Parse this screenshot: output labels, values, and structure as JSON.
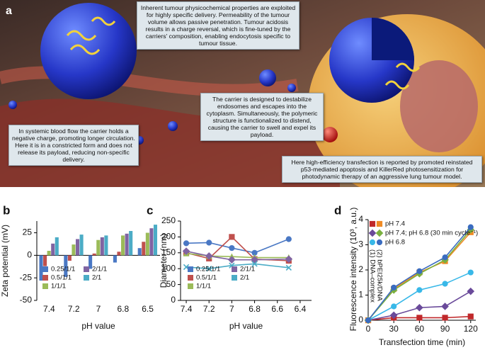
{
  "panel_a": {
    "label": "a",
    "callouts": [
      "Inherent tumour physicochemical properties are exploited for highly specific delivery. Permeability of the tumour volume allows passive penetration. Tumour acidosis results in a charge reversal, which is fine-tuned by the carriers' composition, enabling endocytosis specific to tumour tissue.",
      "The carrier is designed to destabilize endosomes and escapes into the cytoplasm. Simultaneously, the polymeric structure is functionalized to distend, causing the carrier to swell and expel its payload.",
      "In systemic blood flow the carrier holds a negative charge, promoting longer circulation. Here it is in a constricted form and does not release its payload, reducing non-specific delivery.",
      "Here high-efficiency transfection is reported by promoted reinstated p53-mediated apoptosis and KillerRed photosensitization for photodynamic therapy of an aggressive lung tumour model."
    ]
  },
  "chart_data": [
    {
      "type": "bar",
      "panel_label": "b",
      "xlabel": "pH value",
      "ylabel": "Zeta potential (mV)",
      "categories": [
        "7.4",
        "7.2",
        "7",
        "6.8",
        "6.5"
      ],
      "ylim": [
        -50,
        38
      ],
      "yticks": [
        -50,
        -25,
        0,
        25
      ],
      "legend": "lower left",
      "series": [
        {
          "name": "0.25/1/1",
          "color": "#4a78c4",
          "values": [
            -28,
            -24,
            -15,
            -8,
            8
          ]
        },
        {
          "name": "0.5/1/1",
          "color": "#c0504d",
          "values": [
            -12,
            -6,
            2,
            4,
            15
          ]
        },
        {
          "name": "1/1/1",
          "color": "#9bbb59",
          "values": [
            5,
            12,
            17,
            22,
            25
          ]
        },
        {
          "name": "2/1/1",
          "color": "#8064a2",
          "values": [
            13,
            18,
            20,
            24,
            30
          ]
        },
        {
          "name": "2/1",
          "color": "#4bacc6",
          "values": [
            20,
            23,
            22,
            27,
            34
          ]
        }
      ]
    },
    {
      "type": "line",
      "panel_label": "c",
      "xlabel": "pH value",
      "ylabel": "Diameter (nm)",
      "x": [
        7.4,
        7.2,
        7,
        6.8,
        6.5
      ],
      "xlim": [
        7.45,
        6.3
      ],
      "xticks": [
        7.4,
        7.2,
        7,
        6.8,
        6.6,
        6.4
      ],
      "ylim": [
        0,
        250
      ],
      "yticks": [
        0,
        50,
        100,
        150,
        200,
        250
      ],
      "legend": "lower left",
      "series": [
        {
          "name": "0.25/1/1",
          "color": "#4a78c4",
          "marker": "circle",
          "values": [
            180,
            182,
            165,
            150,
            193
          ]
        },
        {
          "name": "0.5/1/1",
          "color": "#c0504d",
          "marker": "square",
          "values": [
            150,
            132,
            200,
            130,
            125
          ]
        },
        {
          "name": "1/1/1",
          "color": "#9bbb59",
          "marker": "triangle",
          "values": [
            148,
            140,
            138,
            135,
            135
          ]
        },
        {
          "name": "2/1/1",
          "color": "#8064a2",
          "marker": "diamond",
          "values": [
            155,
            140,
            128,
            128,
            130
          ]
        },
        {
          "name": "2/1",
          "color": "#4bacc6",
          "marker": "cross",
          "values": [
            105,
            100,
            110,
            115,
            103
          ]
        }
      ]
    },
    {
      "type": "line-pair",
      "panel_label": "d",
      "xlabel": "Transfection time (min)",
      "ylabel": "Fluorescence intensity (10³, a.u.)",
      "x": [
        0,
        30,
        60,
        90,
        120
      ],
      "xlim": [
        0,
        126
      ],
      "xticks": [
        0,
        30,
        60,
        90,
        120
      ],
      "ylim": [
        0,
        4
      ],
      "yticks": [
        0,
        1,
        2,
        3,
        4
      ],
      "legend": "upper left",
      "legend_notes": [
        "(1) DNA–complex",
        "(2) bPEI25k/DNA"
      ],
      "series": [
        {
          "name": "pH 7.4",
          "marker": "square",
          "color": "#c0282a",
          "color_2": "#f08a24",
          "values": [
            0,
            0.1,
            0.1,
            0.1,
            0.15
          ],
          "values_2": [
            0,
            1.25,
            1.9,
            2.35,
            3.5
          ]
        },
        {
          "name": "pH 7.4; pH 6.8 (30 min cycle⁻¹)",
          "marker": "diamond",
          "color": "#6a4a9a",
          "color_2": "#7ab040",
          "values": [
            0,
            0.2,
            0.5,
            0.55,
            1.15
          ],
          "values_2": [
            0,
            1.2,
            1.85,
            2.4,
            3.6
          ]
        },
        {
          "name": "pH 6.8",
          "marker": "circle",
          "color": "#38b8e8",
          "color_2": "#3a6cc0",
          "values": [
            0,
            0.55,
            1.2,
            1.45,
            1.9
          ],
          "values_2": [
            0,
            1.3,
            1.95,
            2.5,
            3.7
          ]
        }
      ]
    }
  ]
}
